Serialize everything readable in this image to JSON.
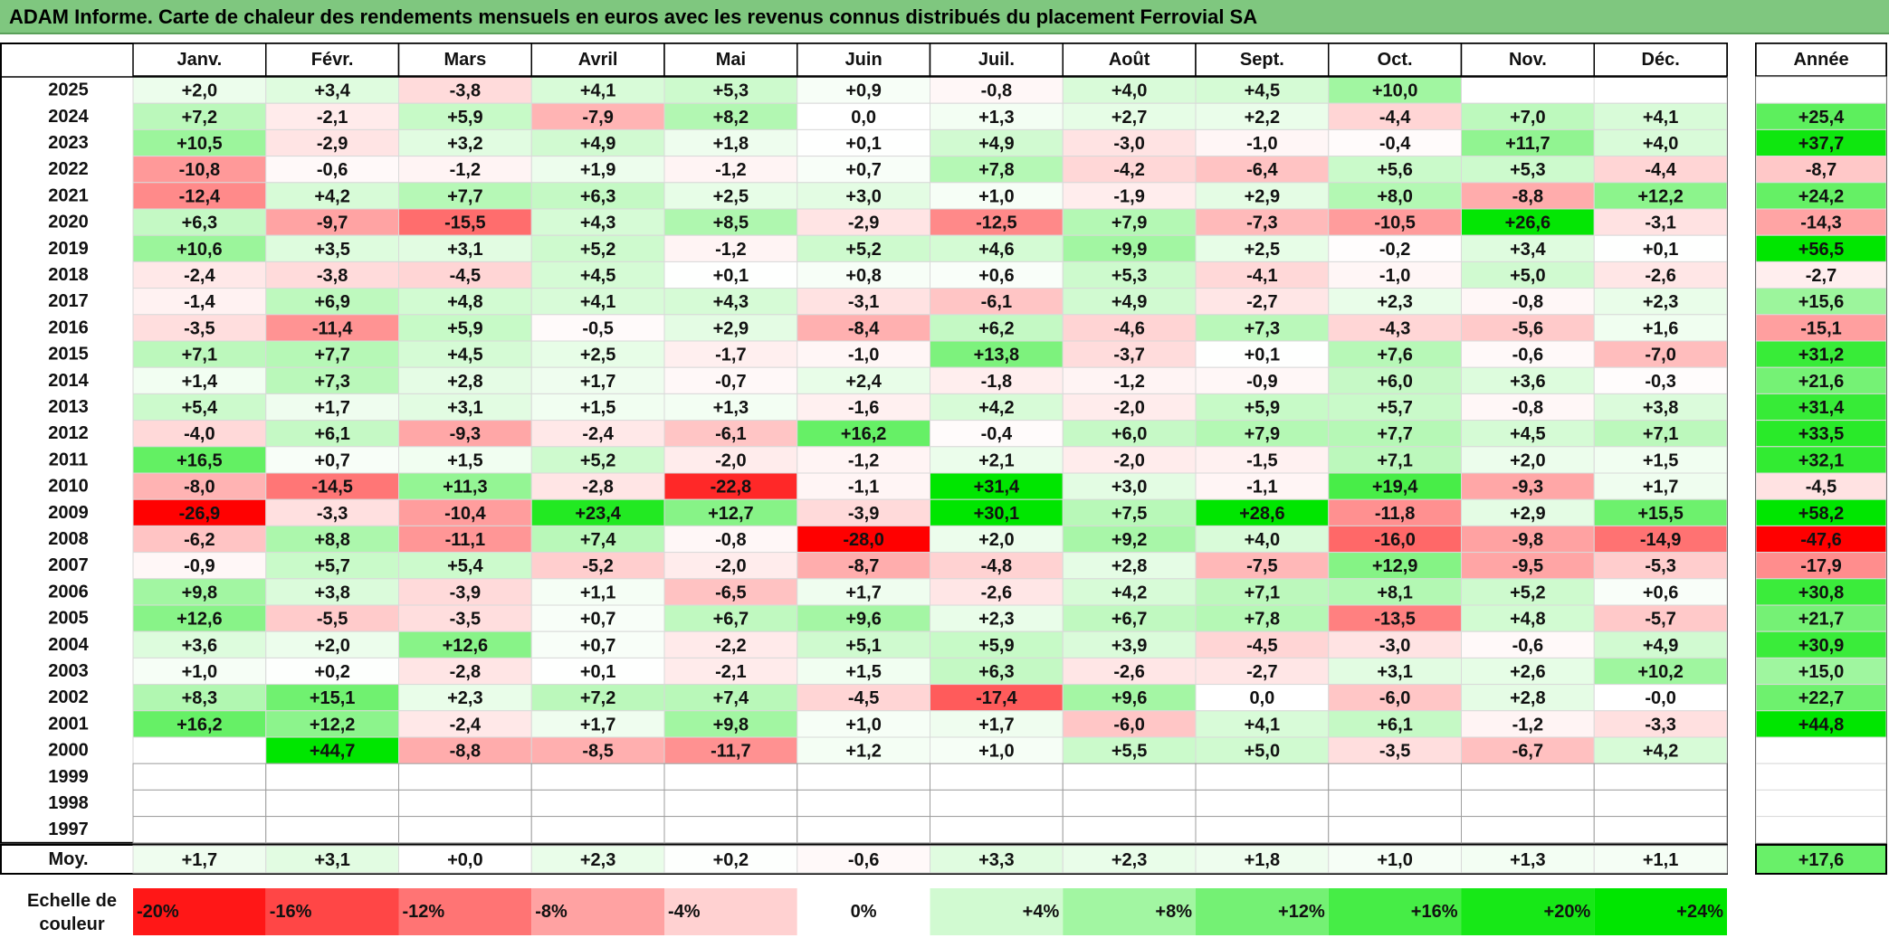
{
  "title": "ADAM Informe. Carte de chaleur des rendements mensuels en euros avec les revenus connus distribués du placement Ferrovial SA",
  "colors": {
    "title_bg": "#7fc77f",
    "negative_max": "#ff0000",
    "neutral": "#ffffff",
    "positive_max": "#00e000"
  },
  "chart_data": {
    "type": "heatmap",
    "title": "ADAM Informe. Carte de chaleur des rendements mensuels en euros avec les revenus connus distribués du placement Ferrovial SA",
    "months": [
      "Janv.",
      "Févr.",
      "Mars",
      "Avril",
      "Mai",
      "Juin",
      "Juil.",
      "Août",
      "Sept.",
      "Oct.",
      "Nov.",
      "Déc."
    ],
    "year_column_label": "Année",
    "rows": [
      {
        "year": "2025",
        "values": [
          "+2,0",
          "+3,4",
          "-3,8",
          "+4,1",
          "+5,3",
          "+0,9",
          "-0,8",
          "+4,0",
          "+4,5",
          "+10,0",
          "",
          ""
        ],
        "annual": ""
      },
      {
        "year": "2024",
        "values": [
          "+7,2",
          "-2,1",
          "+5,9",
          "-7,9",
          "+8,2",
          "0,0",
          "+1,3",
          "+2,7",
          "+2,2",
          "-4,4",
          "+7,0",
          "+4,1"
        ],
        "annual": "+25,4"
      },
      {
        "year": "2023",
        "values": [
          "+10,5",
          "-2,9",
          "+3,2",
          "+4,9",
          "+1,8",
          "+0,1",
          "+4,9",
          "-3,0",
          "-1,0",
          "-0,4",
          "+11,7",
          "+4,0"
        ],
        "annual": "+37,7"
      },
      {
        "year": "2022",
        "values": [
          "-10,8",
          "-0,6",
          "-1,2",
          "+1,9",
          "-1,2",
          "+0,7",
          "+7,8",
          "-4,2",
          "-6,4",
          "+5,6",
          "+5,3",
          "-4,4"
        ],
        "annual": "-8,7"
      },
      {
        "year": "2021",
        "values": [
          "-12,4",
          "+4,2",
          "+7,7",
          "+6,3",
          "+2,5",
          "+3,0",
          "+1,0",
          "-1,9",
          "+2,9",
          "+8,0",
          "-8,8",
          "+12,2"
        ],
        "annual": "+24,2"
      },
      {
        "year": "2020",
        "values": [
          "+6,3",
          "-9,7",
          "-15,5",
          "+4,3",
          "+8,5",
          "-2,9",
          "-12,5",
          "+7,9",
          "-7,3",
          "-10,5",
          "+26,6",
          "-3,1"
        ],
        "annual": "-14,3"
      },
      {
        "year": "2019",
        "values": [
          "+10,6",
          "+3,5",
          "+3,1",
          "+5,2",
          "-1,2",
          "+5,2",
          "+4,6",
          "+9,9",
          "+2,5",
          "-0,2",
          "+3,4",
          "+0,1"
        ],
        "annual": "+56,5"
      },
      {
        "year": "2018",
        "values": [
          "-2,4",
          "-3,8",
          "-4,5",
          "+4,5",
          "+0,1",
          "+0,8",
          "+0,6",
          "+5,3",
          "-4,1",
          "-1,0",
          "+5,0",
          "-2,6"
        ],
        "annual": "-2,7"
      },
      {
        "year": "2017",
        "values": [
          "-1,4",
          "+6,9",
          "+4,8",
          "+4,1",
          "+4,3",
          "-3,1",
          "-6,1",
          "+4,9",
          "-2,7",
          "+2,3",
          "-0,8",
          "+2,3"
        ],
        "annual": "+15,6"
      },
      {
        "year": "2016",
        "values": [
          "-3,5",
          "-11,4",
          "+5,9",
          "-0,5",
          "+2,9",
          "-8,4",
          "+6,2",
          "-4,6",
          "+7,3",
          "-4,3",
          "-5,6",
          "+1,6"
        ],
        "annual": "-15,1"
      },
      {
        "year": "2015",
        "values": [
          "+7,1",
          "+7,7",
          "+4,5",
          "+2,5",
          "-1,7",
          "-1,0",
          "+13,8",
          "-3,7",
          "+0,1",
          "+7,6",
          "-0,6",
          "-7,0"
        ],
        "annual": "+31,2"
      },
      {
        "year": "2014",
        "values": [
          "+1,4",
          "+7,3",
          "+2,8",
          "+1,7",
          "-0,7",
          "+2,4",
          "-1,8",
          "-1,2",
          "-0,9",
          "+6,0",
          "+3,6",
          "-0,3"
        ],
        "annual": "+21,6"
      },
      {
        "year": "2013",
        "values": [
          "+5,4",
          "+1,7",
          "+3,1",
          "+1,5",
          "+1,3",
          "-1,6",
          "+4,2",
          "-2,0",
          "+5,9",
          "+5,7",
          "-0,8",
          "+3,8"
        ],
        "annual": "+31,4"
      },
      {
        "year": "2012",
        "values": [
          "-4,0",
          "+6,1",
          "-9,3",
          "-2,4",
          "-6,1",
          "+16,2",
          "-0,4",
          "+6,0",
          "+7,9",
          "+7,7",
          "+4,5",
          "+7,1"
        ],
        "annual": "+33,5"
      },
      {
        "year": "2011",
        "values": [
          "+16,5",
          "+0,7",
          "+1,5",
          "+5,2",
          "-2,0",
          "-1,2",
          "+2,1",
          "-2,0",
          "-1,5",
          "+7,1",
          "+2,0",
          "+1,5"
        ],
        "annual": "+32,1"
      },
      {
        "year": "2010",
        "values": [
          "-8,0",
          "-14,5",
          "+11,3",
          "-2,8",
          "-22,8",
          "-1,1",
          "+31,4",
          "+3,0",
          "-1,1",
          "+19,4",
          "-9,3",
          "+1,7"
        ],
        "annual": "-4,5"
      },
      {
        "year": "2009",
        "values": [
          "-26,9",
          "-3,3",
          "-10,4",
          "+23,4",
          "+12,7",
          "-3,9",
          "+30,1",
          "+7,5",
          "+28,6",
          "-11,8",
          "+2,9",
          "+15,5"
        ],
        "annual": "+58,2"
      },
      {
        "year": "2008",
        "values": [
          "-6,2",
          "+8,8",
          "-11,1",
          "+7,4",
          "-0,8",
          "-28,0",
          "+2,0",
          "+9,2",
          "+4,0",
          "-16,0",
          "-9,8",
          "-14,9"
        ],
        "annual": "-47,6"
      },
      {
        "year": "2007",
        "values": [
          "-0,9",
          "+5,7",
          "+5,4",
          "-5,2",
          "-2,0",
          "-8,7",
          "-4,8",
          "+2,8",
          "-7,5",
          "+12,9",
          "-9,5",
          "-5,3"
        ],
        "annual": "-17,9"
      },
      {
        "year": "2006",
        "values": [
          "+9,8",
          "+3,8",
          "-3,9",
          "+1,1",
          "-6,5",
          "+1,7",
          "-2,6",
          "+4,2",
          "+7,1",
          "+8,1",
          "+5,2",
          "+0,6"
        ],
        "annual": "+30,8"
      },
      {
        "year": "2005",
        "values": [
          "+12,6",
          "-5,5",
          "-3,5",
          "+0,7",
          "+6,7",
          "+9,6",
          "+2,3",
          "+6,7",
          "+7,8",
          "-13,5",
          "+4,8",
          "-5,7"
        ],
        "annual": "+21,7"
      },
      {
        "year": "2004",
        "values": [
          "+3,6",
          "+2,0",
          "+12,6",
          "+0,7",
          "-2,2",
          "+5,1",
          "+5,9",
          "+3,9",
          "-4,5",
          "-3,0",
          "-0,6",
          "+4,9"
        ],
        "annual": "+30,9"
      },
      {
        "year": "2003",
        "values": [
          "+1,0",
          "+0,2",
          "-2,8",
          "+0,1",
          "-2,1",
          "+1,5",
          "+6,3",
          "-2,6",
          "-2,7",
          "+3,1",
          "+2,6",
          "+10,2"
        ],
        "annual": "+15,0"
      },
      {
        "year": "2002",
        "values": [
          "+8,3",
          "+15,1",
          "+2,3",
          "+7,2",
          "+7,4",
          "-4,5",
          "-17,4",
          "+9,6",
          "0,0",
          "-6,0",
          "+2,8",
          "-0,0"
        ],
        "annual": "+22,7"
      },
      {
        "year": "2001",
        "values": [
          "+16,2",
          "+12,2",
          "-2,4",
          "+1,7",
          "+9,8",
          "+1,0",
          "+1,7",
          "-6,0",
          "+4,1",
          "+6,1",
          "-1,2",
          "-3,3"
        ],
        "annual": "+44,8"
      },
      {
        "year": "2000",
        "values": [
          "",
          "+44,7",
          "-8,8",
          "-8,5",
          "-11,7",
          "+1,2",
          "+1,0",
          "+5,5",
          "+5,0",
          "-3,5",
          "-6,7",
          "+4,2"
        ],
        "annual": ""
      },
      {
        "year": "1999",
        "values": [
          "",
          "",
          "",
          "",
          "",
          "",
          "",
          "",
          "",
          "",
          "",
          ""
        ],
        "annual": ""
      },
      {
        "year": "1998",
        "values": [
          "",
          "",
          "",
          "",
          "",
          "",
          "",
          "",
          "",
          "",
          "",
          ""
        ],
        "annual": ""
      },
      {
        "year": "1997",
        "values": [
          "",
          "",
          "",
          "",
          "",
          "",
          "",
          "",
          "",
          "",
          "",
          ""
        ],
        "annual": ""
      }
    ],
    "average_row": {
      "label": "Moy.",
      "values": [
        "+1,7",
        "+3,1",
        "+0,0",
        "+2,3",
        "+0,2",
        "-0,6",
        "+3,3",
        "+2,3",
        "+1,8",
        "+1,0",
        "+1,3",
        "+1,1"
      ],
      "annual": "+17,6"
    },
    "color_scale": {
      "label": "Echelle de couleur",
      "stops": [
        {
          "label": "-20%",
          "value": -20
        },
        {
          "label": "-16%",
          "value": -16
        },
        {
          "label": "-12%",
          "value": -12
        },
        {
          "label": "-8%",
          "value": -8
        },
        {
          "label": "-4%",
          "value": -4
        },
        {
          "label": "0%",
          "value": 0
        },
        {
          "label": "+4%",
          "value": 4
        },
        {
          "label": "+8%",
          "value": 8
        },
        {
          "label": "+12%",
          "value": 12
        },
        {
          "label": "+16%",
          "value": 16
        },
        {
          "label": "+20%",
          "value": 20
        },
        {
          "label": "+24%",
          "value": 24
        }
      ]
    }
  }
}
